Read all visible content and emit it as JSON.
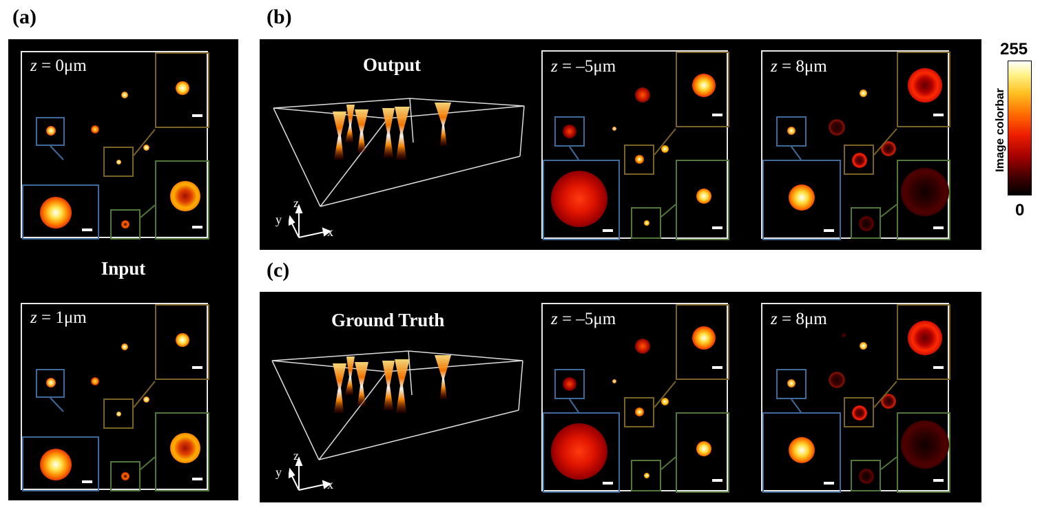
{
  "panel_labels": {
    "a": "(a)",
    "b": "(b)",
    "c": "(c)"
  },
  "panel_a": {
    "section_title": "Input",
    "planes": [
      {
        "z_label": "z",
        "z_value": " = 0μm"
      },
      {
        "z_label": "z",
        "z_value": " = 1μm"
      }
    ]
  },
  "panel_b": {
    "volume_title": "Output",
    "planes": [
      {
        "z_label": "z",
        "z_value": " = –5μm"
      },
      {
        "z_label": "z",
        "z_value": " = 8μm"
      }
    ]
  },
  "panel_c": {
    "volume_title": "Ground Truth",
    "planes": [
      {
        "z_label": "z",
        "z_value": " = –5μm"
      },
      {
        "z_label": "z",
        "z_value": " = 8μm"
      }
    ]
  },
  "axes": {
    "x": "x",
    "y": "y",
    "z": "z"
  },
  "colorbar": {
    "label": "Image colorbar",
    "max": "255",
    "min": "0",
    "colormap": "hot"
  },
  "colors": {
    "inset_blue": "#3f6a9c",
    "inset_brown": "#7b6328",
    "inset_green": "#52773a",
    "frame": "#e8e8e8"
  }
}
